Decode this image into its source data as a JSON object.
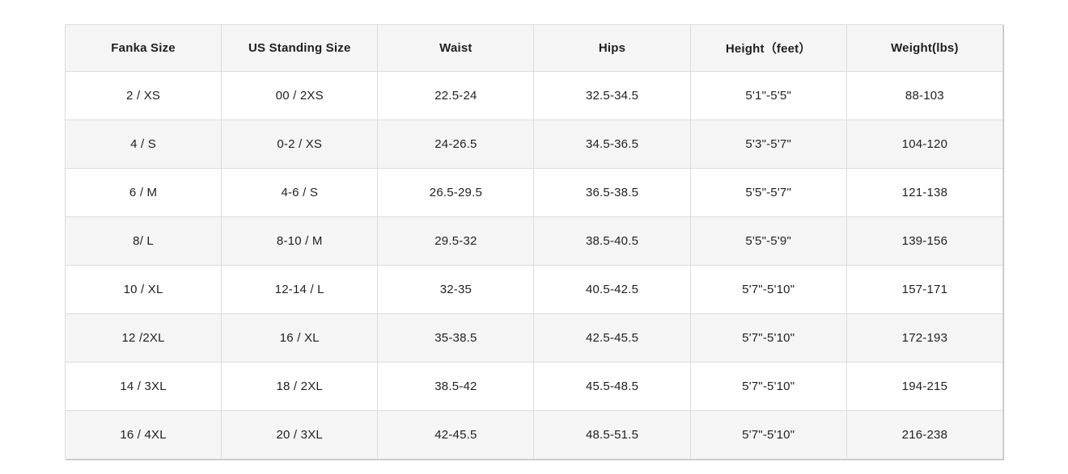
{
  "table": {
    "name": "fanka-size-chart",
    "columns": [
      "Fanka Size",
      "US Standing Size",
      "Waist",
      "Hips",
      "Height（feet）",
      "Weight(lbs)"
    ],
    "rows": [
      [
        "2 / XS",
        "00 / 2XS",
        "22.5-24",
        "32.5-34.5",
        "5'1\"-5'5\"",
        "88-103"
      ],
      [
        "4 / S",
        "0-2 / XS",
        "24-26.5",
        "34.5-36.5",
        "5'3\"-5'7\"",
        "104-120"
      ],
      [
        "6 / M",
        "4-6 / S",
        "26.5-29.5",
        "36.5-38.5",
        "5'5\"-5'7\"",
        "121-138"
      ],
      [
        "8/ L",
        "8-10 / M",
        "29.5-32",
        "38.5-40.5",
        "5'5\"-5'9\"",
        "139-156"
      ],
      [
        "10 / XL",
        "12-14 / L",
        "32-35",
        "40.5-42.5",
        "5'7\"-5'10\"",
        "157-171"
      ],
      [
        "12 /2XL",
        "16 / XL",
        "35-38.5",
        "42.5-45.5",
        "5'7\"-5'10\"",
        "172-193"
      ],
      [
        "14 / 3XL",
        "18 / 2XL",
        "38.5-42",
        "45.5-48.5",
        "5'7\"-5'10\"",
        "194-215"
      ],
      [
        "16 / 4XL",
        "20 / 3XL",
        "42-45.5",
        "48.5-51.5",
        "5'7\"-5'10\"",
        "216-238"
      ]
    ]
  },
  "colors": {
    "header_bg": "#f5f5f5",
    "stripe_bg": "#f5f5f5",
    "row_bg": "#ffffff",
    "border": "#dcdcdc",
    "outer_border": "#cfcfcf",
    "text": "#1f1f1f"
  }
}
